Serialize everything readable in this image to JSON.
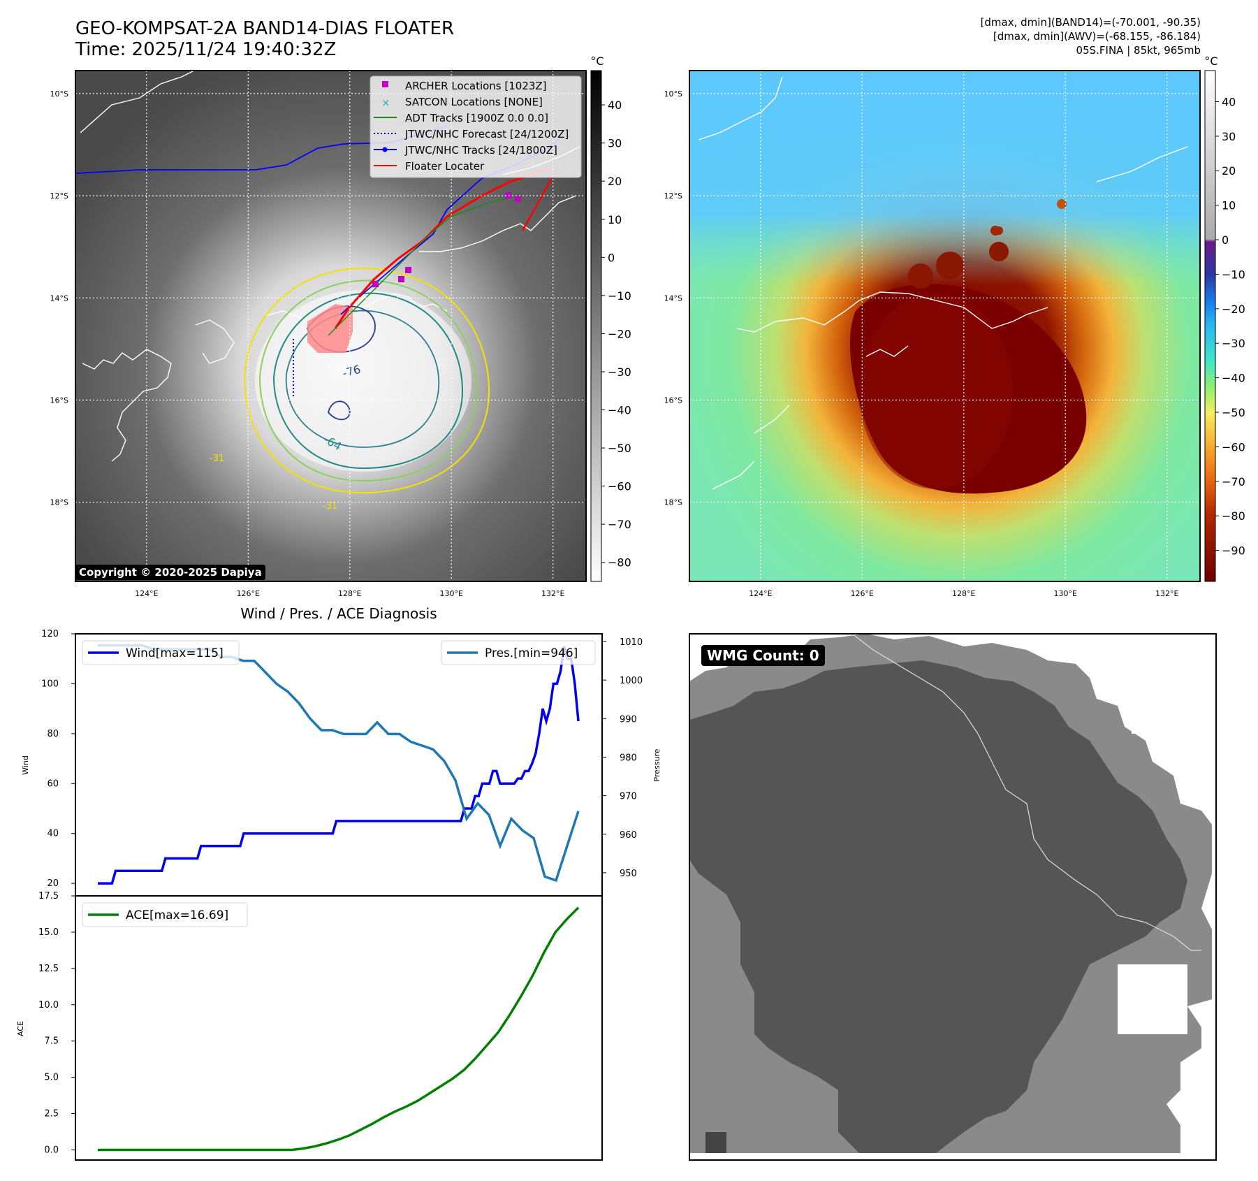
{
  "header": {
    "title_line1": "GEO-KOMPSAT-2A BAND14-DIAS FLOATER",
    "title_line2": "Time: 2025/11/24 19:40:32Z",
    "info_line1": "[dmax, dmin](BAND14)=(-70.001, -90.35)",
    "info_line2": "[dmax, dmin](AWV)=(-68.155, -86.184)",
    "info_line3": "05S.FINA | 85kt, 965mb"
  },
  "map": {
    "lat_labels": [
      "10°S",
      "12°S",
      "14°S",
      "16°S",
      "18°S"
    ],
    "lat_values": [
      -10,
      -12,
      -14,
      -16,
      -18
    ],
    "lon_labels": [
      "124°E",
      "126°E",
      "128°E",
      "130°E",
      "132°E"
    ],
    "lon_values": [
      124,
      126,
      128,
      130,
      132
    ],
    "lon_range": [
      122.6,
      132.65
    ],
    "lat_range": [
      -9.55,
      -19.55
    ],
    "copyright": "Copyright © 2020-2025 Dapiya",
    "contour_labels": [
      "-76",
      "-64",
      "-31",
      "-31"
    ],
    "legend": [
      {
        "label": "ARCHER Locations [1023Z]",
        "kind": "square",
        "color": "#c000c0"
      },
      {
        "label": "SATCON Locations [NONE]",
        "kind": "x",
        "color": "#20b0b0"
      },
      {
        "label": "ADT Tracks [1900Z 0.0 0.0]",
        "kind": "line",
        "color": "#1a8a1a"
      },
      {
        "label": "JTWC/NHC Forecast [24/1200Z]",
        "kind": "dotted",
        "color": "#0000ff"
      },
      {
        "label": "JTWC/NHC Tracks [24/1800Z]",
        "kind": "linedot",
        "color": "#0000ff"
      },
      {
        "label": "Floater Locater",
        "kind": "line",
        "color": "#ff0000"
      }
    ]
  },
  "colorbars": {
    "unit": "°C",
    "band14_ticks": [
      "40",
      "30",
      "20",
      "10",
      "0",
      "−10",
      "−20",
      "−30",
      "−40",
      "−50",
      "−60",
      "−70",
      "−80"
    ],
    "band14_values": [
      40,
      30,
      20,
      10,
      0,
      -10,
      -20,
      -30,
      -40,
      -50,
      -60,
      -70,
      -80
    ],
    "band14_range": [
      49,
      -85
    ],
    "awv_ticks": [
      "40",
      "30",
      "20",
      "10",
      "0",
      "−10",
      "−20",
      "−30",
      "−40",
      "−50",
      "−60",
      "−70",
      "−80",
      "−90"
    ],
    "awv_values": [
      40,
      30,
      20,
      10,
      0,
      -10,
      -20,
      -30,
      -40,
      -50,
      -60,
      -70,
      -80,
      -90
    ],
    "awv_range": [
      49,
      -99
    ]
  },
  "chart_data": [
    {
      "type": "line",
      "title": "Wind / Pres. / ACE Diagnosis",
      "ylabel": "Wind",
      "ylabel_right": "Pressure",
      "ylim": [
        15,
        120
      ],
      "ylim_right": [
        944,
        1012
      ],
      "yticks": [
        "120",
        "100",
        "80",
        "60",
        "40",
        "20"
      ],
      "ytick_values": [
        120,
        100,
        80,
        60,
        40,
        20
      ],
      "yticks_right": [
        "1010",
        "1000",
        "990",
        "980",
        "970",
        "960",
        "950"
      ],
      "ytick_values_right": [
        1010,
        1000,
        990,
        980,
        970,
        960,
        950
      ],
      "series": [
        {
          "name": "Wind[max=115]",
          "color": "#0000ee",
          "axis": "left",
          "values": [
            20,
            20,
            20,
            20,
            20,
            25,
            25,
            25,
            25,
            25,
            25,
            25,
            25,
            25,
            25,
            25,
            25,
            25,
            25,
            30,
            30,
            30,
            30,
            30,
            30,
            30,
            30,
            30,
            30,
            35,
            35,
            35,
            35,
            35,
            35,
            35,
            35,
            35,
            35,
            35,
            35,
            40,
            40,
            40,
            40,
            40,
            40,
            40,
            40,
            40,
            40,
            40,
            40,
            40,
            40,
            40,
            40,
            40,
            40,
            40,
            40,
            40,
            40,
            40,
            40,
            40,
            40,
            45,
            45,
            45,
            45,
            45,
            45,
            45,
            45,
            45,
            45,
            45,
            45,
            45,
            45,
            45,
            45,
            45,
            45,
            45,
            45,
            45,
            45,
            45,
            45,
            45,
            45,
            45,
            45,
            45,
            45,
            45,
            45,
            45,
            45,
            45,
            45,
            50,
            50,
            50,
            55,
            55,
            60,
            60,
            60,
            65,
            65,
            60,
            60,
            60,
            60,
            60,
            62,
            62,
            65,
            65,
            68,
            72,
            80,
            90,
            85,
            90,
            100,
            100,
            105,
            115,
            110,
            110,
            100,
            85
          ]
        },
        {
          "name": "Pres.[min=946]",
          "color": "#1f77b4",
          "axis": "right",
          "values": [
            1009,
            1009,
            1009,
            1009,
            1009,
            1008,
            1008,
            1008,
            1008,
            1008,
            1008,
            1006,
            1006,
            1005,
            1005,
            1002,
            999,
            997,
            994,
            990,
            987,
            987,
            986,
            986,
            986,
            989,
            986,
            986,
            984,
            983,
            982,
            979,
            974,
            964,
            968,
            965,
            957,
            964,
            961,
            959,
            949,
            948,
            957,
            966
          ]
        }
      ]
    },
    {
      "type": "line",
      "ylabel": "ACE",
      "ylim": [
        -0.7,
        17.5
      ],
      "yticks": [
        "17.5",
        "15.0",
        "12.5",
        "10.0",
        "7.5",
        "5.0",
        "2.5",
        "0.0"
      ],
      "ytick_values": [
        17.5,
        15.0,
        12.5,
        10.0,
        7.5,
        5.0,
        2.5,
        0.0
      ],
      "series": [
        {
          "name": "ACE[max=16.69]",
          "color": "#008000",
          "values": [
            0,
            0,
            0,
            0,
            0,
            0,
            0,
            0,
            0,
            0,
            0,
            0,
            0,
            0,
            0,
            0,
            0,
            0,
            0.1,
            0.25,
            0.45,
            0.7,
            1.0,
            1.4,
            1.8,
            2.25,
            2.65,
            3.0,
            3.4,
            3.9,
            4.4,
            4.9,
            5.5,
            6.3,
            7.2,
            8.1,
            9.3,
            10.6,
            12.0,
            13.6,
            15.0,
            15.9,
            16.69
          ]
        }
      ]
    }
  ],
  "wmg": {
    "label": "WMG Count: 0",
    "colors": {
      "white": "#ffffff",
      "light": "#8a8a8a",
      "dark": "#555555",
      "darkest": "#444444"
    }
  }
}
